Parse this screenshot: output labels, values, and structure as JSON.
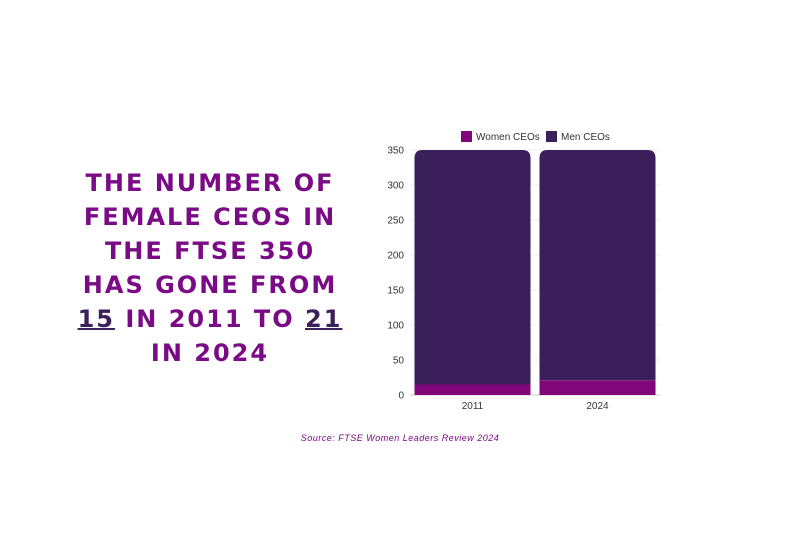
{
  "headline": {
    "part1": "The number of female CEOs in the FTSE 350 has gone from",
    "num1": "15",
    "part2": "in 2011 to",
    "num2": "21",
    "part3": "in 2024"
  },
  "source": "Source: FTSE Women Leaders Review 2024",
  "colors": {
    "women": "#80067a",
    "men": "#3b1f5a",
    "headline": "#7a0a85"
  },
  "chart_data": {
    "type": "bar",
    "stacked": true,
    "categories": [
      "2011",
      "2024"
    ],
    "series": [
      {
        "name": "Women CEOs",
        "values": [
          15,
          21
        ]
      },
      {
        "name": "Men CEOs",
        "values": [
          335,
          329
        ]
      }
    ],
    "yticks": [
      0,
      50,
      100,
      150,
      200,
      250,
      300,
      350
    ],
    "ylim": [
      0,
      350
    ],
    "legend_position": "top",
    "grid": true
  }
}
